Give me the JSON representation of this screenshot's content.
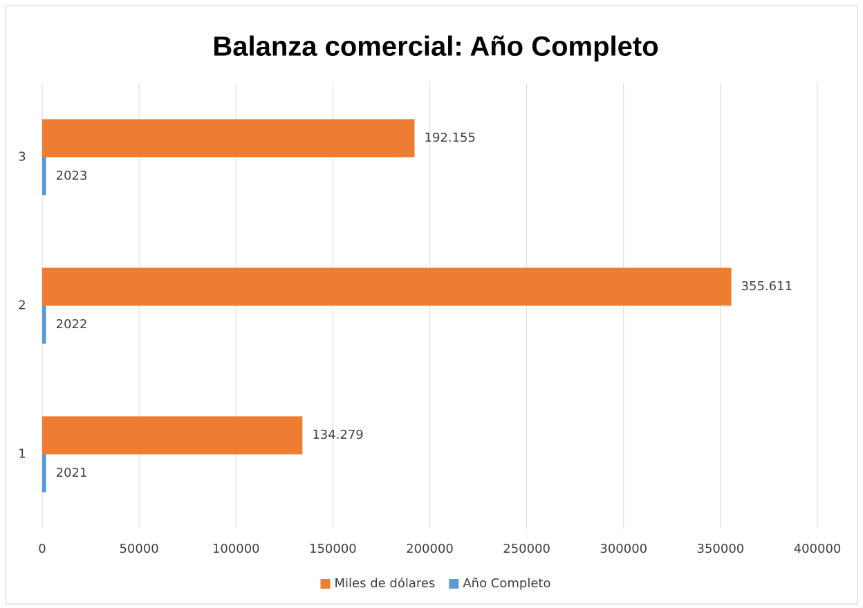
{
  "chart_data": {
    "type": "hbar",
    "title": "Balanza comercial: Año Completo",
    "categories": [
      "1",
      "2",
      "3"
    ],
    "series": [
      {
        "name": "Miles de dólares",
        "color": "#ed7d31",
        "values": [
          134279,
          355611,
          192155
        ],
        "value_labels": [
          "134.279",
          "355.611",
          "192.155"
        ]
      },
      {
        "name": "Año Completo",
        "color": "#5b9bd5",
        "values": [
          2021,
          2022,
          2023
        ]
      }
    ],
    "xlim": [
      0,
      400000
    ],
    "xticks": [
      0,
      50000,
      100000,
      150000,
      200000,
      250000,
      300000,
      350000,
      400000
    ],
    "grid": true,
    "legend": "bottom"
  }
}
